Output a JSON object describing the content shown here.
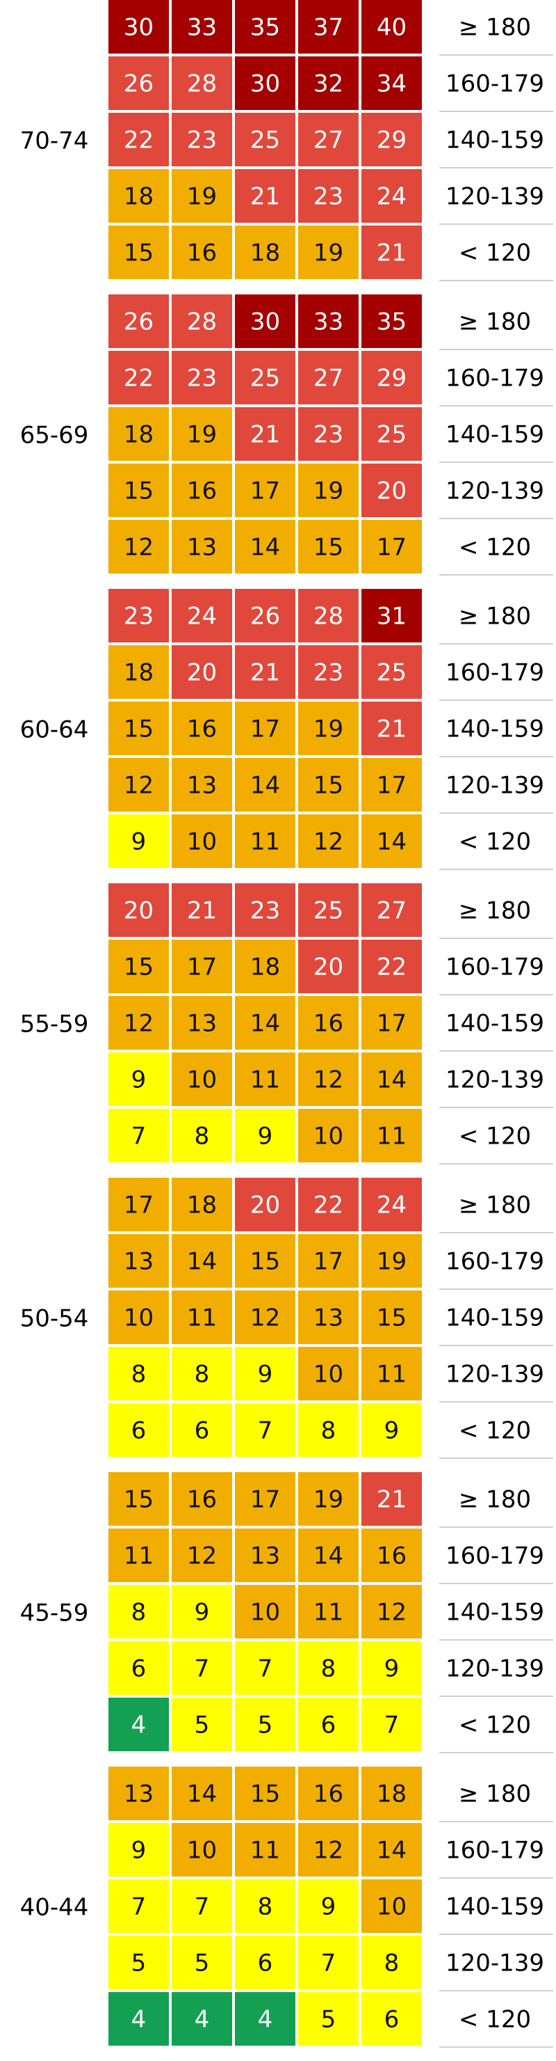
{
  "chart_data": {
    "type": "heatmap",
    "row_labels": [
      "≥ 180",
      "160-179",
      "140-159",
      "120-139",
      "< 120"
    ],
    "colors": {
      "green": "#14A052",
      "yellow": "#FFFF00",
      "orange": "#F2AE00",
      "red": "#E0483C",
      "darkred": "#A40000"
    },
    "blocks": [
      {
        "age": "70-74",
        "values": [
          [
            30,
            33,
            35,
            37,
            40
          ],
          [
            26,
            28,
            30,
            32,
            34
          ],
          [
            22,
            23,
            25,
            27,
            29
          ],
          [
            18,
            19,
            21,
            23,
            24
          ],
          [
            15,
            16,
            18,
            19,
            21
          ]
        ],
        "colors": [
          [
            "darkred",
            "darkred",
            "darkred",
            "darkred",
            "darkred"
          ],
          [
            "red",
            "red",
            "darkred",
            "darkred",
            "darkred"
          ],
          [
            "red",
            "red",
            "red",
            "red",
            "red"
          ],
          [
            "orange",
            "orange",
            "red",
            "red",
            "red"
          ],
          [
            "orange",
            "orange",
            "orange",
            "orange",
            "red"
          ]
        ]
      },
      {
        "age": "65-69",
        "values": [
          [
            26,
            28,
            30,
            33,
            35
          ],
          [
            22,
            23,
            25,
            27,
            29
          ],
          [
            18,
            19,
            21,
            23,
            25
          ],
          [
            15,
            16,
            17,
            19,
            20
          ],
          [
            12,
            13,
            14,
            15,
            17
          ]
        ],
        "colors": [
          [
            "red",
            "red",
            "darkred",
            "darkred",
            "darkred"
          ],
          [
            "red",
            "red",
            "red",
            "red",
            "red"
          ],
          [
            "orange",
            "orange",
            "red",
            "red",
            "red"
          ],
          [
            "orange",
            "orange",
            "orange",
            "orange",
            "red"
          ],
          [
            "orange",
            "orange",
            "orange",
            "orange",
            "orange"
          ]
        ]
      },
      {
        "age": "60-64",
        "values": [
          [
            23,
            24,
            26,
            28,
            31
          ],
          [
            18,
            20,
            21,
            23,
            25
          ],
          [
            15,
            16,
            17,
            19,
            21
          ],
          [
            12,
            13,
            14,
            15,
            17
          ],
          [
            9,
            10,
            11,
            12,
            14
          ]
        ],
        "colors": [
          [
            "red",
            "red",
            "red",
            "red",
            "darkred"
          ],
          [
            "orange",
            "red",
            "red",
            "red",
            "red"
          ],
          [
            "orange",
            "orange",
            "orange",
            "orange",
            "red"
          ],
          [
            "orange",
            "orange",
            "orange",
            "orange",
            "orange"
          ],
          [
            "yellow",
            "orange",
            "orange",
            "orange",
            "orange"
          ]
        ]
      },
      {
        "age": "55-59",
        "values": [
          [
            20,
            21,
            23,
            25,
            27
          ],
          [
            15,
            17,
            18,
            20,
            22
          ],
          [
            12,
            13,
            14,
            16,
            17
          ],
          [
            9,
            10,
            11,
            12,
            14
          ],
          [
            7,
            8,
            9,
            10,
            11
          ]
        ],
        "colors": [
          [
            "red",
            "red",
            "red",
            "red",
            "red"
          ],
          [
            "orange",
            "orange",
            "orange",
            "red",
            "red"
          ],
          [
            "orange",
            "orange",
            "orange",
            "orange",
            "orange"
          ],
          [
            "yellow",
            "orange",
            "orange",
            "orange",
            "orange"
          ],
          [
            "yellow",
            "yellow",
            "yellow",
            "orange",
            "orange"
          ]
        ]
      },
      {
        "age": "50-54",
        "values": [
          [
            17,
            18,
            20,
            22,
            24
          ],
          [
            13,
            14,
            15,
            17,
            19
          ],
          [
            10,
            11,
            12,
            13,
            15
          ],
          [
            8,
            8,
            9,
            10,
            11
          ],
          [
            6,
            6,
            7,
            8,
            9
          ]
        ],
        "colors": [
          [
            "orange",
            "orange",
            "red",
            "red",
            "red"
          ],
          [
            "orange",
            "orange",
            "orange",
            "orange",
            "orange"
          ],
          [
            "orange",
            "orange",
            "orange",
            "orange",
            "orange"
          ],
          [
            "yellow",
            "yellow",
            "yellow",
            "orange",
            "orange"
          ],
          [
            "yellow",
            "yellow",
            "yellow",
            "yellow",
            "yellow"
          ]
        ]
      },
      {
        "age": "45-59",
        "values": [
          [
            15,
            16,
            17,
            19,
            21
          ],
          [
            11,
            12,
            13,
            14,
            16
          ],
          [
            8,
            9,
            10,
            11,
            12
          ],
          [
            6,
            7,
            7,
            8,
            9
          ],
          [
            4,
            5,
            5,
            6,
            7
          ]
        ],
        "colors": [
          [
            "orange",
            "orange",
            "orange",
            "orange",
            "red"
          ],
          [
            "orange",
            "orange",
            "orange",
            "orange",
            "orange"
          ],
          [
            "yellow",
            "yellow",
            "orange",
            "orange",
            "orange"
          ],
          [
            "yellow",
            "yellow",
            "yellow",
            "yellow",
            "yellow"
          ],
          [
            "green",
            "yellow",
            "yellow",
            "yellow",
            "yellow"
          ]
        ]
      },
      {
        "age": "40-44",
        "values": [
          [
            13,
            14,
            15,
            16,
            18
          ],
          [
            9,
            10,
            11,
            12,
            14
          ],
          [
            7,
            7,
            8,
            9,
            10
          ],
          [
            5,
            5,
            6,
            7,
            8
          ],
          [
            4,
            4,
            4,
            5,
            6
          ]
        ],
        "colors": [
          [
            "orange",
            "orange",
            "orange",
            "orange",
            "orange"
          ],
          [
            "yellow",
            "orange",
            "orange",
            "orange",
            "orange"
          ],
          [
            "yellow",
            "yellow",
            "yellow",
            "yellow",
            "orange"
          ],
          [
            "yellow",
            "yellow",
            "yellow",
            "yellow",
            "yellow"
          ],
          [
            "green",
            "green",
            "green",
            "yellow",
            "yellow"
          ]
        ]
      }
    ]
  }
}
